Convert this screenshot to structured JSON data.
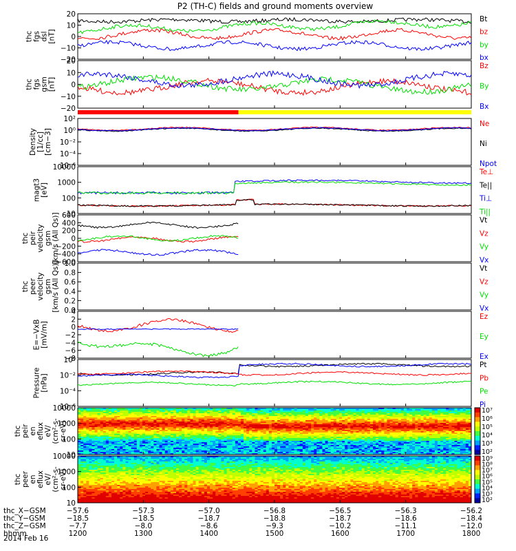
{
  "title": "P2 (TH-C) fields and ground moments overview",
  "colors": {
    "black": "#000000",
    "red": "#ff0000",
    "green": "#00e000",
    "blue": "#0000ff",
    "yellow": "#ffff00"
  },
  "chart_data": [
    {
      "type": "line",
      "id": "fgs-dsl",
      "ylabel": [
        "thc",
        "fgs",
        "dsl",
        "[nT]"
      ],
      "ylim": [
        -20,
        20
      ],
      "ticks": [
        "20",
        "10",
        "0",
        "−10",
        "−20"
      ],
      "series": [
        {
          "name": "Bt",
          "color": "#000000"
        },
        {
          "name": "bz",
          "color": "#ff0000"
        },
        {
          "name": "by",
          "color": "#00e000"
        },
        {
          "name": "bx",
          "color": "#0000ff"
        }
      ]
    },
    {
      "type": "line",
      "id": "fgs-gsm",
      "ylabel": [
        "thc",
        "fgs",
        "gsm",
        "[nT]"
      ],
      "ylim": [
        -20,
        20
      ],
      "ticks": [
        "20",
        "10",
        "0",
        "−10",
        "−20"
      ],
      "series": [
        {
          "name": "Bz",
          "color": "#ff0000"
        },
        {
          "name": "By",
          "color": "#00e000"
        },
        {
          "name": "Bx",
          "color": "#0000ff"
        }
      ]
    },
    {
      "type": "line",
      "id": "density",
      "ylabel": [
        "Density",
        "[1/cc]",
        "[cm−3]"
      ],
      "log": true,
      "ticks": [
        "10²",
        "10⁰",
        "10⁻²",
        "10⁻⁴",
        "10⁻⁶"
      ],
      "series": [
        {
          "name": "Ne",
          "color": "#ff0000"
        },
        {
          "name": "Ni",
          "color": "#000000"
        },
        {
          "name": "Npot",
          "color": "#0000ff"
        }
      ]
    },
    {
      "type": "line",
      "id": "temp",
      "ylabel": [
        "magt3",
        "[eV]"
      ],
      "log": true,
      "ticks": [
        "10000",
        "1000",
        "100",
        "10"
      ],
      "series": [
        {
          "name": "Te⊥",
          "color": "#ff0000"
        },
        {
          "name": "Te||",
          "color": "#000000"
        },
        {
          "name": "Ti⊥",
          "color": "#0000ff"
        },
        {
          "name": "Ti||",
          "color": "#00e000"
        }
      ]
    },
    {
      "type": "line",
      "id": "vi",
      "ylabel": [
        "thc",
        "peir",
        "velocity",
        "gsm",
        "[km/s (All Qs)]"
      ],
      "ylim": [
        -600,
        600
      ],
      "ticks": [
        "600",
        "400",
        "200",
        "0",
        "−200",
        "−400",
        "−600"
      ],
      "series": [
        {
          "name": "Vt",
          "color": "#000000"
        },
        {
          "name": "Vz",
          "color": "#ff0000"
        },
        {
          "name": "Vy",
          "color": "#00e000"
        },
        {
          "name": "Vx",
          "color": "#0000ff"
        }
      ]
    },
    {
      "type": "line",
      "id": "ve",
      "ylabel": [
        "thc",
        "peer",
        "velocity",
        "gsm",
        "[km/s (All Qs)]"
      ],
      "ylim": [
        0,
        1
      ],
      "ticks": [
        "1.0",
        "0.8",
        "0.6",
        "0.4",
        "0.2",
        "0.0"
      ],
      "series": [
        {
          "name": "Vt",
          "color": "#000000"
        },
        {
          "name": "Vz",
          "color": "#ff0000"
        },
        {
          "name": "Vy",
          "color": "#00e000"
        },
        {
          "name": "Vx",
          "color": "#0000ff"
        }
      ]
    },
    {
      "type": "line",
      "id": "efield",
      "ylabel": [
        "E=−VxB",
        "[mV/m]"
      ],
      "ylim": [
        -8,
        4
      ],
      "ticks": [
        "4",
        "2",
        "0",
        "−2",
        "−4",
        "−6",
        "−8"
      ],
      "series": [
        {
          "name": "Ez",
          "color": "#ff0000"
        },
        {
          "name": "Ey",
          "color": "#00e000"
        },
        {
          "name": "Ex",
          "color": "#0000ff"
        }
      ]
    },
    {
      "type": "line",
      "id": "pressure",
      "ylabel": [
        "Pressure",
        "[nPa]"
      ],
      "log": true,
      "ticks": [
        "10⁰",
        "10⁻²",
        "10⁻⁴",
        "10⁻⁶"
      ],
      "series": [
        {
          "name": "Pt",
          "color": "#000000"
        },
        {
          "name": "Pb",
          "color": "#ff0000"
        },
        {
          "name": "Pe",
          "color": "#00e000"
        },
        {
          "name": "Pi",
          "color": "#0000ff"
        }
      ]
    },
    {
      "type": "heatmap",
      "id": "peir-spec",
      "ylabel": [
        "thc",
        "peir",
        "en",
        "eflux",
        "eV/",
        "(cm²-s-",
        "sr-eV)"
      ],
      "log": true,
      "ticks": [
        "10000",
        "1000",
        "100",
        "10"
      ],
      "colorbar": [
        "10⁷",
        "10⁶",
        "10⁵",
        "10⁴",
        "10³",
        "10²"
      ]
    },
    {
      "type": "heatmap",
      "id": "peer-spec",
      "ylabel": [
        "thc",
        "peer",
        "en",
        "eflux",
        "eV/",
        "(cm²-s-",
        "sr-eV)"
      ],
      "log": true,
      "ticks": [
        "10000",
        "1000",
        "100",
        "10"
      ],
      "colorbar": [
        "10⁹",
        "10⁸",
        "10⁷",
        "10⁶",
        "10⁵",
        "10⁴",
        "10³",
        "10²"
      ]
    }
  ],
  "x_axis": {
    "rows": [
      {
        "label": "thc_X−GSM",
        "values": [
          "−57.6",
          "−57.3",
          "−57.0",
          "−56.8",
          "−56.5",
          "−56.3",
          "−56.2"
        ]
      },
      {
        "label": "thc_Y−GSM",
        "values": [
          "−18.5",
          "−18.5",
          "−18.7",
          "−18.8",
          "−18.7",
          "−18.6",
          "−18.4"
        ]
      },
      {
        "label": "thc_Z−GSM",
        "values": [
          "−7.7",
          "−8.0",
          "−8.6",
          "−9.3",
          "−10.2",
          "−11.1",
          "−12.0"
        ]
      },
      {
        "label": "hhmm",
        "values": [
          "1200",
          "1300",
          "1400",
          "1500",
          "1600",
          "1700",
          "1800"
        ]
      }
    ],
    "date": "2014 Feb 16",
    "tick_hours": [
      12,
      13,
      14,
      15,
      16,
      17,
      18
    ],
    "range_hours": [
      12,
      18
    ]
  },
  "mode_bar": [
    {
      "from": 12.0,
      "to": 14.45,
      "color": "#ff0000"
    },
    {
      "from": 14.45,
      "to": 18.0,
      "color": "#ffff00"
    }
  ]
}
